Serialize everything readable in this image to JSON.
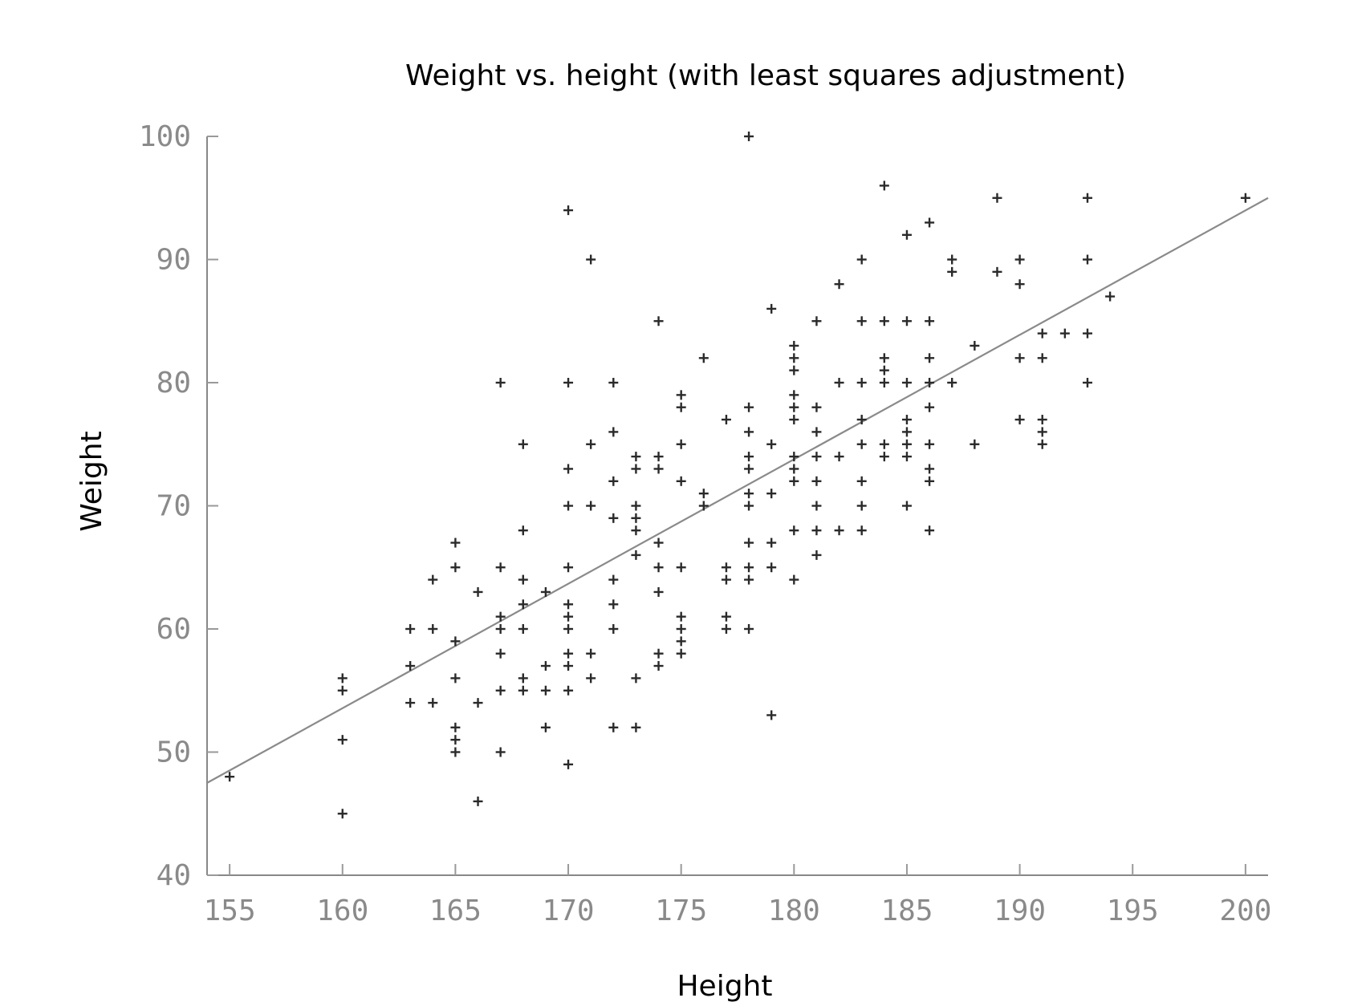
{
  "chart_data": {
    "type": "scatter",
    "title": "Weight vs. height (with least squares adjustment)",
    "xlabel": "Height",
    "ylabel": "Weight",
    "xlim": [
      154,
      201
    ],
    "ylim": [
      40,
      100
    ],
    "x_ticks": [
      155,
      160,
      165,
      170,
      175,
      180,
      185,
      190,
      195,
      200
    ],
    "y_ticks": [
      40,
      50,
      60,
      70,
      80,
      90,
      100
    ],
    "grid": false,
    "legend": "none",
    "series": [
      {
        "marker": "+",
        "color": "#2a2a2a",
        "points": [
          [
            155,
            48
          ],
          [
            160,
            56
          ],
          [
            160,
            55
          ],
          [
            160,
            51
          ],
          [
            160,
            45
          ],
          [
            163,
            60
          ],
          [
            163,
            57
          ],
          [
            163,
            54
          ],
          [
            164,
            64
          ],
          [
            164,
            60
          ],
          [
            164,
            54
          ],
          [
            165,
            67
          ],
          [
            165,
            65
          ],
          [
            165,
            59
          ],
          [
            165,
            56
          ],
          [
            165,
            52
          ],
          [
            165,
            51
          ],
          [
            165,
            50
          ],
          [
            166,
            63
          ],
          [
            166,
            54
          ],
          [
            166,
            46
          ],
          [
            167,
            80
          ],
          [
            167,
            65
          ],
          [
            167,
            61
          ],
          [
            167,
            60
          ],
          [
            167,
            58
          ],
          [
            167,
            55
          ],
          [
            167,
            50
          ],
          [
            168,
            75
          ],
          [
            168,
            68
          ],
          [
            168,
            64
          ],
          [
            168,
            62
          ],
          [
            168,
            60
          ],
          [
            168,
            56
          ],
          [
            168,
            55
          ],
          [
            169,
            63
          ],
          [
            169,
            57
          ],
          [
            169,
            55
          ],
          [
            169,
            52
          ],
          [
            170,
            94
          ],
          [
            170,
            80
          ],
          [
            170,
            73
          ],
          [
            170,
            70
          ],
          [
            170,
            65
          ],
          [
            170,
            62
          ],
          [
            170,
            61
          ],
          [
            170,
            60
          ],
          [
            170,
            58
          ],
          [
            170,
            57
          ],
          [
            170,
            55
          ],
          [
            170,
            49
          ],
          [
            171,
            90
          ],
          [
            171,
            75
          ],
          [
            171,
            70
          ],
          [
            171,
            58
          ],
          [
            171,
            56
          ],
          [
            172,
            80
          ],
          [
            172,
            76
          ],
          [
            172,
            72
          ],
          [
            172,
            69
          ],
          [
            172,
            64
          ],
          [
            172,
            62
          ],
          [
            172,
            60
          ],
          [
            172,
            52
          ],
          [
            173,
            74
          ],
          [
            173,
            73
          ],
          [
            173,
            70
          ],
          [
            173,
            69
          ],
          [
            173,
            68
          ],
          [
            173,
            66
          ],
          [
            173,
            56
          ],
          [
            173,
            52
          ],
          [
            174,
            85
          ],
          [
            174,
            74
          ],
          [
            174,
            73
          ],
          [
            174,
            67
          ],
          [
            174,
            65
          ],
          [
            174,
            63
          ],
          [
            174,
            58
          ],
          [
            174,
            57
          ],
          [
            175,
            79
          ],
          [
            175,
            78
          ],
          [
            175,
            75
          ],
          [
            175,
            72
          ],
          [
            175,
            65
          ],
          [
            175,
            61
          ],
          [
            175,
            60
          ],
          [
            175,
            59
          ],
          [
            175,
            58
          ],
          [
            176,
            82
          ],
          [
            176,
            71
          ],
          [
            176,
            70
          ],
          [
            177,
            77
          ],
          [
            177,
            65
          ],
          [
            177,
            64
          ],
          [
            177,
            61
          ],
          [
            177,
            60
          ],
          [
            178,
            100
          ],
          [
            178,
            78
          ],
          [
            178,
            76
          ],
          [
            178,
            74
          ],
          [
            178,
            73
          ],
          [
            178,
            71
          ],
          [
            178,
            70
          ],
          [
            178,
            67
          ],
          [
            178,
            65
          ],
          [
            178,
            64
          ],
          [
            178,
            60
          ],
          [
            179,
            86
          ],
          [
            179,
            75
          ],
          [
            179,
            71
          ],
          [
            179,
            67
          ],
          [
            179,
            65
          ],
          [
            179,
            53
          ],
          [
            180,
            83
          ],
          [
            180,
            82
          ],
          [
            180,
            81
          ],
          [
            180,
            79
          ],
          [
            180,
            78
          ],
          [
            180,
            77
          ],
          [
            180,
            74
          ],
          [
            180,
            73
          ],
          [
            180,
            72
          ],
          [
            180,
            68
          ],
          [
            180,
            64
          ],
          [
            181,
            85
          ],
          [
            181,
            78
          ],
          [
            181,
            76
          ],
          [
            181,
            74
          ],
          [
            181,
            72
          ],
          [
            181,
            70
          ],
          [
            181,
            68
          ],
          [
            181,
            66
          ],
          [
            182,
            88
          ],
          [
            182,
            80
          ],
          [
            182,
            74
          ],
          [
            182,
            68
          ],
          [
            183,
            90
          ],
          [
            183,
            85
          ],
          [
            183,
            80
          ],
          [
            183,
            77
          ],
          [
            183,
            75
          ],
          [
            183,
            72
          ],
          [
            183,
            70
          ],
          [
            183,
            68
          ],
          [
            184,
            96
          ],
          [
            184,
            85
          ],
          [
            184,
            82
          ],
          [
            184,
            81
          ],
          [
            184,
            80
          ],
          [
            184,
            75
          ],
          [
            184,
            74
          ],
          [
            185,
            92
          ],
          [
            185,
            85
          ],
          [
            185,
            80
          ],
          [
            185,
            77
          ],
          [
            185,
            76
          ],
          [
            185,
            75
          ],
          [
            185,
            74
          ],
          [
            185,
            70
          ],
          [
            186,
            93
          ],
          [
            186,
            85
          ],
          [
            186,
            82
          ],
          [
            186,
            80
          ],
          [
            186,
            78
          ],
          [
            186,
            75
          ],
          [
            186,
            73
          ],
          [
            186,
            72
          ],
          [
            186,
            68
          ],
          [
            187,
            90
          ],
          [
            187,
            89
          ],
          [
            187,
            80
          ],
          [
            188,
            83
          ],
          [
            188,
            75
          ],
          [
            189,
            95
          ],
          [
            189,
            89
          ],
          [
            190,
            90
          ],
          [
            190,
            88
          ],
          [
            190,
            82
          ],
          [
            190,
            77
          ],
          [
            191,
            84
          ],
          [
            191,
            82
          ],
          [
            191,
            77
          ],
          [
            191,
            76
          ],
          [
            191,
            75
          ],
          [
            192,
            84
          ],
          [
            193,
            95
          ],
          [
            193,
            90
          ],
          [
            193,
            84
          ],
          [
            193,
            80
          ],
          [
            194,
            87
          ],
          [
            200,
            95
          ]
        ]
      }
    ],
    "fit_line": {
      "x": [
        154,
        201
      ],
      "y": [
        47.5,
        95
      ]
    }
  }
}
